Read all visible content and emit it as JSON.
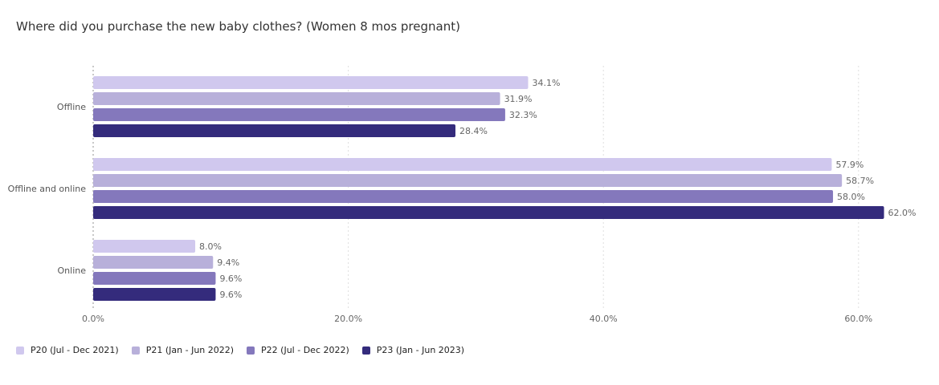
{
  "chart_data": {
    "type": "bar",
    "orientation": "horizontal",
    "title": "Where did you purchase the new baby clothes? (Women 8 mos pregnant)",
    "categories": [
      "Offline",
      "Offline and online",
      "Online"
    ],
    "series": [
      {
        "name": "P20 (Jul - Dec 2021)",
        "color": "#d0c8ee",
        "values": [
          34.1,
          57.9,
          8.0
        ],
        "labels": [
          "34.1%",
          "57.9%",
          "8.0%"
        ]
      },
      {
        "name": "P21 (Jan - Jun 2022)",
        "color": "#b8b0da",
        "values": [
          31.9,
          58.7,
          9.4
        ],
        "labels": [
          "31.9%",
          "58.7%",
          "9.4%"
        ]
      },
      {
        "name": "P22 (Jul - Dec 2022)",
        "color": "#8478bc",
        "values": [
          32.3,
          58.0,
          9.6
        ],
        "labels": [
          "32.3%",
          "58.0%",
          "9.6%"
        ]
      },
      {
        "name": "P23 (Jan - Jun 2023)",
        "color": "#342b7c",
        "values": [
          28.4,
          62.0,
          9.6
        ],
        "labels": [
          "28.4%",
          "62.0%",
          "9.6%"
        ]
      }
    ],
    "xlim": [
      0,
      65
    ],
    "xticks": [
      0,
      20,
      40,
      60
    ],
    "xtick_labels": [
      "0.0%",
      "20.0%",
      "40.0%",
      "60.0%"
    ],
    "grid": true,
    "legend_position": "bottom-left"
  }
}
